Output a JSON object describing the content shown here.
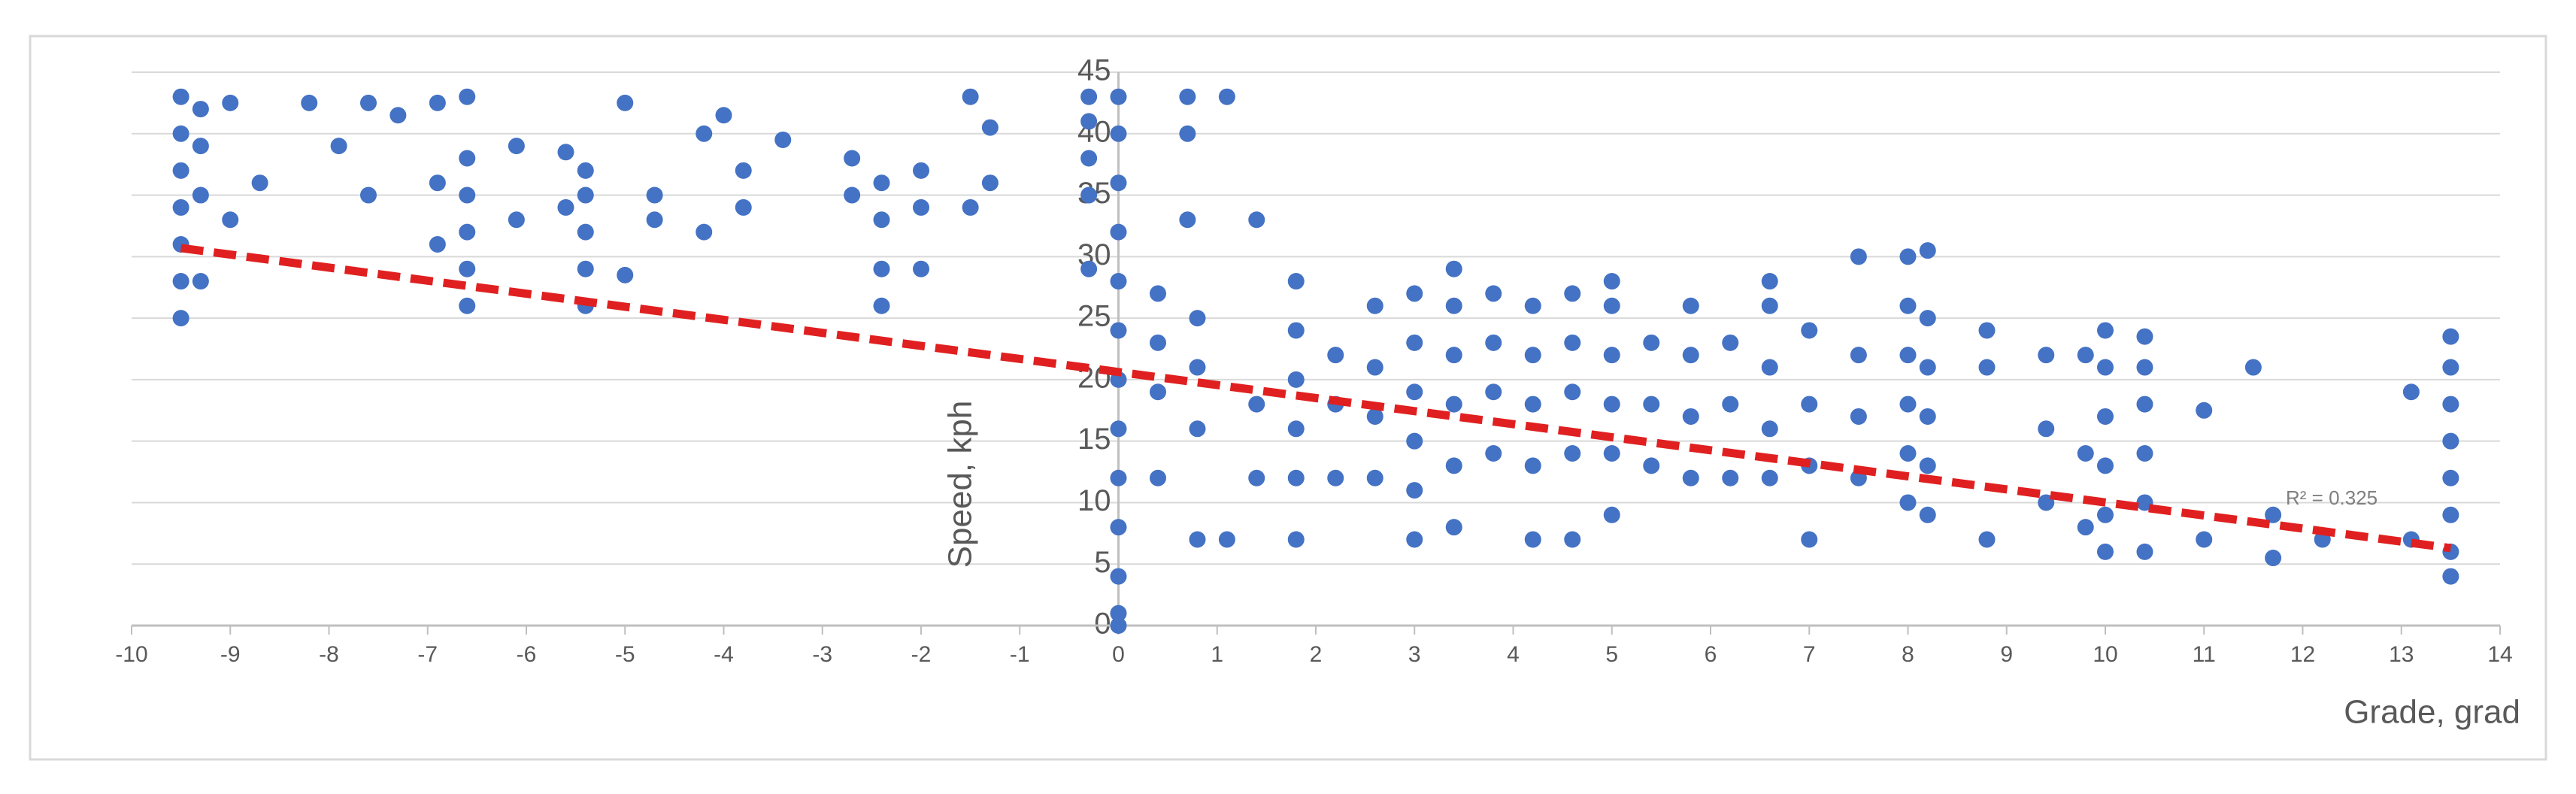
{
  "chart_data": {
    "type": "scatter",
    "x_label": "Grade, grad",
    "y_label": "Speed, kph",
    "annotation": "R² = 0.325",
    "color": "#4472c4",
    "x": [
      -9.5,
      -9.5,
      -9.5,
      -9.5,
      -9.5,
      -9.5,
      -9.5,
      -9.3,
      -9.3,
      -9.3,
      -9.3,
      -9,
      -9,
      -8.7,
      -8.2,
      -7.9,
      -7.6,
      -7.6,
      -7.3,
      -6.9,
      -6.9,
      -6.9,
      -6.6,
      -6.6,
      -6.6,
      -6.6,
      -6.6,
      -6.6,
      -6.1,
      -6.1,
      -5.6,
      -5.6,
      -5.4,
      -5.4,
      -5.4,
      -5.4,
      -5.4,
      -5,
      -5,
      -4.7,
      -4.7,
      -4.2,
      -4.2,
      -4,
      -3.8,
      -3.8,
      -3.4,
      -2.7,
      -2.7,
      -2.4,
      -2.4,
      -2.4,
      -2.4,
      -2,
      -2,
      -2,
      -1.5,
      -1.5,
      -1.3,
      -1.3,
      -0.3,
      -0.3,
      -0.3,
      -0.3,
      -0.3,
      0,
      0,
      0,
      0,
      0,
      0,
      0,
      0,
      0,
      0,
      0,
      0,
      0,
      0.4,
      0.4,
      0.4,
      0.4,
      0.7,
      0.7,
      0.7,
      0.8,
      0.8,
      0.8,
      0.8,
      1.1,
      1.1,
      1.4,
      1.4,
      1.4,
      1.8,
      1.8,
      1.8,
      1.8,
      1.8,
      1.8,
      2.2,
      2.2,
      2.2,
      2.6,
      2.6,
      2.6,
      2.6,
      3,
      3,
      3,
      3,
      3,
      3,
      3.4,
      3.4,
      3.4,
      3.4,
      3.4,
      3.4,
      3.8,
      3.8,
      3.8,
      3.8,
      4.2,
      4.2,
      4.2,
      4.2,
      4.2,
      4.6,
      4.6,
      4.6,
      4.6,
      4.6,
      5,
      5,
      5,
      5,
      5,
      5,
      5.4,
      5.4,
      5.4,
      5.8,
      5.8,
      5.8,
      5.8,
      6.2,
      6.2,
      6.2,
      6.6,
      6.6,
      6.6,
      6.6,
      6.6,
      7,
      7,
      7,
      7,
      7.5,
      7.5,
      7.5,
      7.5,
      8,
      8,
      8,
      8,
      8,
      8,
      8.2,
      8.2,
      8.2,
      8.2,
      8.2,
      8.2,
      8.8,
      8.8,
      8.8,
      9.4,
      9.4,
      9.4,
      9.8,
      9.8,
      9.8,
      10,
      10,
      10,
      10,
      10,
      10,
      10.4,
      10.4,
      10.4,
      10.4,
      10.4,
      10.4,
      11,
      11,
      11.5,
      11.7,
      11.7,
      12.2,
      13.1,
      13.1,
      13.5,
      13.5,
      13.5,
      13.5,
      13.5,
      13.5,
      13.5,
      13.5
    ],
    "values": [
      25,
      28,
      31,
      34,
      37,
      40,
      43,
      28,
      35,
      39,
      42,
      33,
      42.5,
      36,
      42.5,
      39,
      35,
      42.5,
      41.5,
      31,
      36,
      42.5,
      26,
      29,
      32,
      35,
      38,
      43,
      33,
      39,
      34,
      38.5,
      26,
      29,
      32,
      35,
      37,
      28.5,
      42.5,
      33,
      35,
      32,
      40,
      41.5,
      34,
      37,
      39.5,
      35,
      38,
      26,
      29,
      33,
      36,
      29,
      34,
      37,
      34,
      43,
      36,
      40.5,
      29,
      35,
      38,
      41,
      43,
      0,
      1,
      4,
      8,
      12,
      16,
      20,
      24,
      28,
      32,
      36,
      40,
      43,
      12,
      19,
      23,
      27,
      33,
      40,
      43,
      7,
      16,
      21,
      25,
      7,
      43,
      12,
      18,
      33,
      7,
      12,
      16,
      20,
      24,
      28,
      12,
      18,
      22,
      12,
      17,
      21,
      26,
      7,
      11,
      15,
      19,
      23,
      27,
      8,
      13,
      18,
      22,
      26,
      29,
      14,
      19,
      23,
      27,
      7,
      13,
      18,
      22,
      26,
      7,
      14,
      19,
      23,
      27,
      9,
      14,
      18,
      22,
      26,
      28,
      13,
      18,
      23,
      12,
      17,
      22,
      26,
      12,
      18,
      23,
      12,
      16,
      21,
      26,
      28,
      7,
      13,
      18,
      24,
      12,
      17,
      22,
      30,
      10,
      14,
      18,
      22,
      26,
      30,
      9,
      13,
      17,
      21,
      25,
      30.5,
      7,
      21,
      24,
      10,
      16,
      22,
      8,
      14,
      22,
      6,
      9,
      13,
      17,
      21,
      24,
      6,
      10,
      14,
      18,
      21,
      23.5,
      7,
      17.5,
      21,
      5.5,
      9,
      7,
      7,
      19,
      4,
      6,
      9,
      12,
      15,
      18,
      21,
      23.5
    ],
    "trendline": {
      "x": [
        -9.5,
        13.5
      ],
      "values": [
        30.7,
        6.3
      ],
      "color": "#e02020",
      "dashed": true
    },
    "xlim": [
      -10,
      14
    ],
    "xticks": [
      -10,
      -9,
      -8,
      -7,
      -6,
      -5,
      -4,
      -3,
      -2,
      -1,
      0,
      1,
      2,
      3,
      4,
      5,
      6,
      7,
      8,
      9,
      10,
      11,
      12,
      13,
      14
    ],
    "ylim": [
      0,
      45
    ],
    "yticks": [
      0,
      5,
      10,
      15,
      20,
      25,
      30,
      35,
      40,
      45
    ],
    "grid": true
  }
}
